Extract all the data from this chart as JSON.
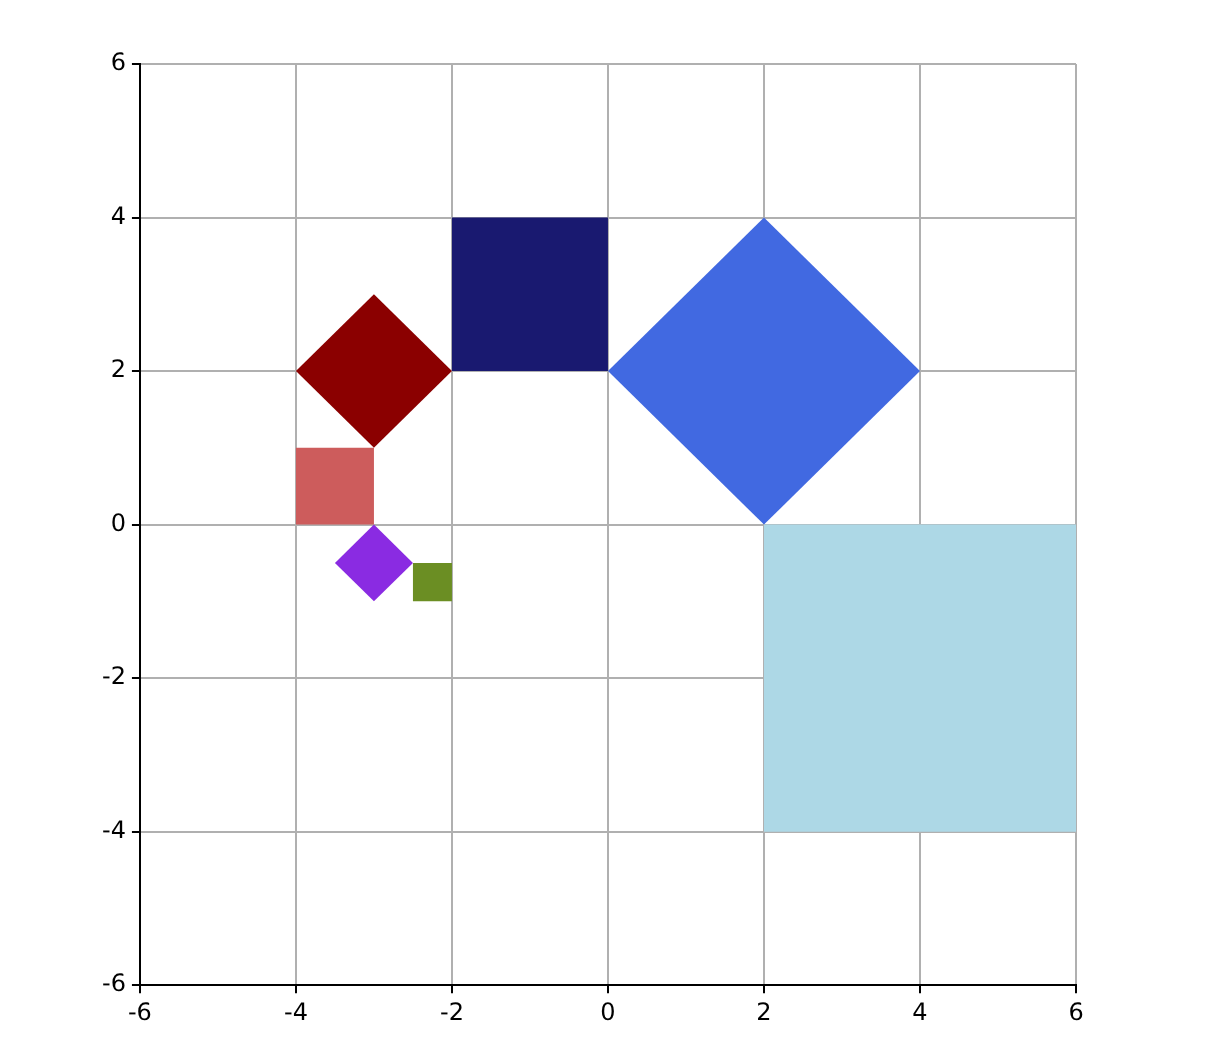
{
  "chart_data": {
    "type": "area",
    "xlim": [
      -6,
      6
    ],
    "ylim": [
      -6,
      6
    ],
    "xticks": [
      -6,
      -4,
      -2,
      0,
      2,
      4,
      6
    ],
    "yticks": [
      -6,
      -4,
      -2,
      0,
      2,
      4,
      6
    ],
    "grid": true,
    "series": [
      {
        "color": "#191970",
        "x": [
          -2,
          0,
          0,
          -2,
          -2
        ],
        "values": [
          2,
          2,
          4,
          4,
          2
        ]
      },
      {
        "color": "#add8e6",
        "x": [
          2,
          6,
          6,
          2,
          2
        ],
        "values": [
          -4,
          -4,
          0,
          0,
          -4
        ]
      },
      {
        "color": "#8b0000",
        "x": [
          -4,
          -3,
          -2,
          -3,
          -4
        ],
        "values": [
          2,
          1,
          2,
          3,
          2
        ]
      },
      {
        "color": "#4169e1",
        "x": [
          0,
          2,
          4,
          2,
          0
        ],
        "values": [
          2,
          0,
          2,
          4,
          2
        ]
      },
      {
        "color": "#cd5c5c",
        "x": [
          -4,
          -3,
          -3,
          -4,
          -4
        ],
        "values": [
          0,
          0,
          1,
          1,
          0
        ]
      },
      {
        "color": "#8a2be2",
        "x": [
          -3.5,
          -3,
          -2.5,
          -3,
          -3.5
        ],
        "values": [
          -0.5,
          -1,
          -0.5,
          0,
          -0.5
        ]
      },
      {
        "color": "#6b8e23",
        "x": [
          -2.5,
          -2,
          -2,
          -2.5,
          -2.5
        ],
        "values": [
          -1,
          -1,
          -0.5,
          -0.5,
          -1
        ]
      }
    ]
  }
}
